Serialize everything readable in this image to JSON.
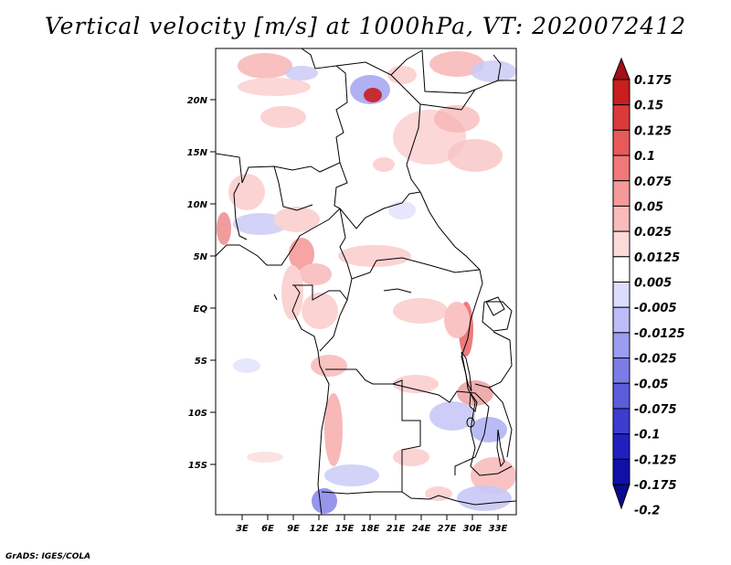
{
  "title": "Vertical velocity [m/s] at 1000hPa, VT: 2020072412",
  "credit": "GrADS: IGES/COLA",
  "map": {
    "lat_labels": [
      "20N",
      "15N",
      "10N",
      "5N",
      "EQ",
      "5S",
      "10S",
      "15S"
    ],
    "lon_labels": [
      "3E",
      "6E",
      "9E",
      "12E",
      "15E",
      "18E",
      "21E",
      "24E",
      "27E",
      "30E",
      "33E"
    ]
  },
  "colorbar": {
    "levels": [
      "0.175",
      "0.15",
      "0.125",
      "0.1",
      "0.075",
      "0.05",
      "0.025",
      "0.0125",
      "0.005",
      "-0.005",
      "-0.0125",
      "-0.025",
      "-0.05",
      "-0.075",
      "-0.1",
      "-0.125",
      "-0.175",
      "-0.2"
    ],
    "colors": [
      "#a50f15",
      "#c81e1e",
      "#dc3a3a",
      "#e85a5a",
      "#f07878",
      "#f59a9a",
      "#f9bbbb",
      "#fcdada",
      "#ffffff",
      "#dcdcfc",
      "#bcbcf8",
      "#9c9cf0",
      "#7c7ce8",
      "#5c5cdc",
      "#3c3cd0",
      "#2020c0",
      "#1010a8",
      "#0a0a8c"
    ]
  }
}
